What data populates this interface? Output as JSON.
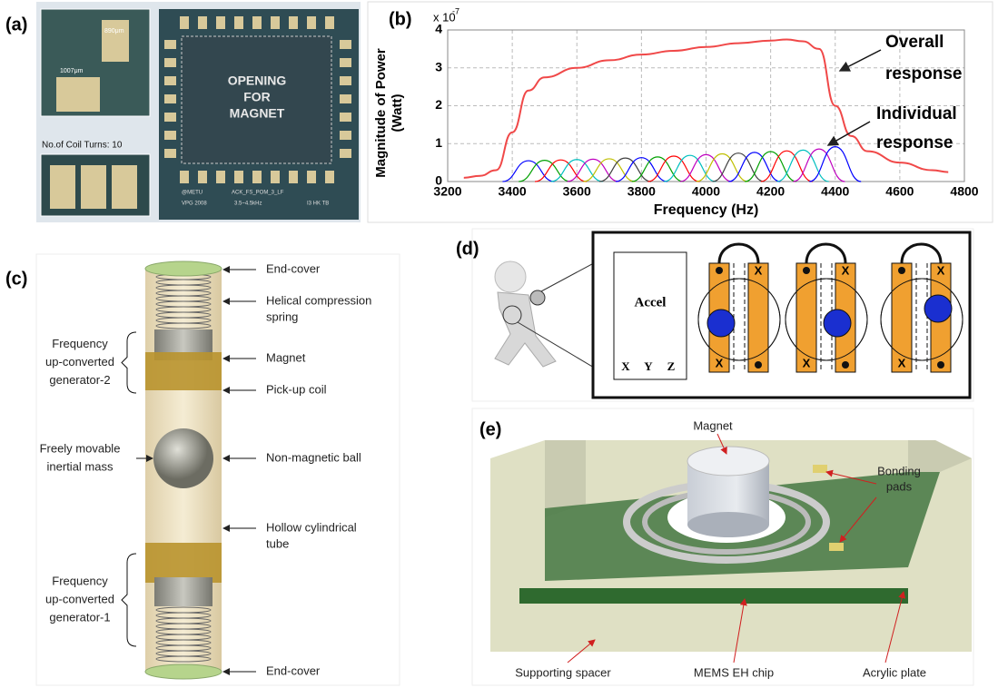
{
  "panels": {
    "a": {
      "tag": "(a)",
      "dim_height": "890μm",
      "dim_width": "1007μm",
      "center_text": [
        "OPENING",
        "FOR",
        "MAGNET"
      ],
      "coil_turns": "No.of Coil Turns: 10",
      "chip_marks": [
        "@METU",
        "ACK_FS_POM_3_LF",
        "VPG 2008",
        "3.5~4.5kHz",
        "I3 HK TB"
      ]
    },
    "b": {
      "tag": "(b)"
    },
    "c": {
      "tag": "(c)",
      "right_labels": [
        [
          "End-cover"
        ],
        [
          "Helical compression",
          "spring"
        ],
        [
          "Magnet"
        ],
        [
          "Pick-up coil"
        ],
        [
          "Non-magnetic ball"
        ],
        [
          "Hollow cylindrical",
          "tube"
        ],
        [
          "End-cover"
        ]
      ],
      "left_labels": [
        [
          "Frequency",
          "up-converted",
          "generator-2"
        ],
        [
          "Freely movable",
          "inertial mass"
        ],
        [
          "Frequency",
          "up-converted",
          "generator-1"
        ]
      ]
    },
    "d": {
      "tag": "(d)",
      "accel": "Accel",
      "axes": [
        "X",
        "Y",
        "Z"
      ],
      "coil_marker": "X"
    },
    "e": {
      "tag": "(e)",
      "magnet": "Magnet",
      "bonding_pads": [
        "Bonding",
        "pads"
      ],
      "supporting_spacer": "Supporting spacer",
      "chip": "MEMS EH chip",
      "acrylic": "Acrylic plate"
    }
  },
  "chart_data": {
    "type": "line",
    "x_label": "Frequency (Hz)",
    "y_label": [
      "Magnitude of Power",
      "(Watt)"
    ],
    "y_scale_label": "x 10",
    "y_scale_exponent": "-7",
    "xlim": [
      3200,
      4800
    ],
    "xticks": [
      3200,
      3400,
      3600,
      3800,
      4000,
      4200,
      4400,
      4600,
      4800
    ],
    "ylim": [
      0,
      4
    ],
    "yticks": [
      0,
      1,
      2,
      3,
      4
    ],
    "grid": true,
    "series": [
      {
        "name": [
          "Overall",
          "response"
        ],
        "color": "#f04848",
        "x": [
          3250,
          3300,
          3350,
          3400,
          3450,
          3500,
          3600,
          3700,
          3800,
          3900,
          4000,
          4100,
          4200,
          4250,
          4300,
          4350,
          4400,
          4450,
          4500,
          4600,
          4700,
          4750
        ],
        "values": [
          0.1,
          0.15,
          0.3,
          1.3,
          2.4,
          2.75,
          3.0,
          3.2,
          3.35,
          3.45,
          3.55,
          3.65,
          3.72,
          3.75,
          3.7,
          3.5,
          2.0,
          1.2,
          0.8,
          0.5,
          0.3,
          0.25
        ]
      },
      {
        "name": [
          "Individual",
          "response"
        ],
        "color": "#0000ff",
        "x": [
          3370,
          3450,
          3530
        ],
        "values": [
          0,
          0.55,
          0
        ]
      },
      {
        "color": "#00a000",
        "x": [
          3420,
          3500,
          3580
        ],
        "values": [
          0,
          0.56,
          0
        ]
      },
      {
        "color": "#ff0000",
        "x": [
          3470,
          3550,
          3630
        ],
        "values": [
          0,
          0.57,
          0
        ]
      },
      {
        "color": "#00bfbf",
        "x": [
          3520,
          3600,
          3680
        ],
        "values": [
          0,
          0.58,
          0
        ]
      },
      {
        "color": "#bf00bf",
        "x": [
          3570,
          3650,
          3730
        ],
        "values": [
          0,
          0.59,
          0
        ]
      },
      {
        "color": "#bfbf00",
        "x": [
          3620,
          3700,
          3780
        ],
        "values": [
          0,
          0.6,
          0
        ]
      },
      {
        "color": "#404040",
        "x": [
          3670,
          3750,
          3830
        ],
        "values": [
          0,
          0.62,
          0
        ]
      },
      {
        "color": "#0000ff",
        "x": [
          3720,
          3800,
          3880
        ],
        "values": [
          0,
          0.63,
          0
        ]
      },
      {
        "color": "#00a000",
        "x": [
          3770,
          3850,
          3930
        ],
        "values": [
          0,
          0.65,
          0
        ]
      },
      {
        "color": "#ff0000",
        "x": [
          3820,
          3900,
          3980
        ],
        "values": [
          0,
          0.67,
          0
        ]
      },
      {
        "color": "#00bfbf",
        "x": [
          3870,
          3950,
          4030
        ],
        "values": [
          0,
          0.69,
          0
        ]
      },
      {
        "color": "#bf00bf",
        "x": [
          3920,
          4000,
          4080
        ],
        "values": [
          0,
          0.71,
          0
        ]
      },
      {
        "color": "#bfbf00",
        "x": [
          3970,
          4050,
          4130
        ],
        "values": [
          0,
          0.73,
          0
        ]
      },
      {
        "color": "#404040",
        "x": [
          4020,
          4100,
          4180
        ],
        "values": [
          0,
          0.75,
          0
        ]
      },
      {
        "color": "#0000ff",
        "x": [
          4070,
          4150,
          4230
        ],
        "values": [
          0,
          0.77,
          0
        ]
      },
      {
        "color": "#00a000",
        "x": [
          4120,
          4200,
          4280
        ],
        "values": [
          0,
          0.79,
          0
        ]
      },
      {
        "color": "#ff0000",
        "x": [
          4170,
          4250,
          4330
        ],
        "values": [
          0,
          0.81,
          0
        ]
      },
      {
        "color": "#00bfbf",
        "x": [
          4220,
          4300,
          4380
        ],
        "values": [
          0,
          0.83,
          0
        ]
      },
      {
        "color": "#bf00bf",
        "x": [
          4270,
          4350,
          4430
        ],
        "values": [
          0,
          0.86,
          0
        ]
      },
      {
        "color": "#0000ff",
        "x": [
          4320,
          4400,
          4480
        ],
        "values": [
          0,
          0.92,
          0
        ]
      }
    ]
  }
}
